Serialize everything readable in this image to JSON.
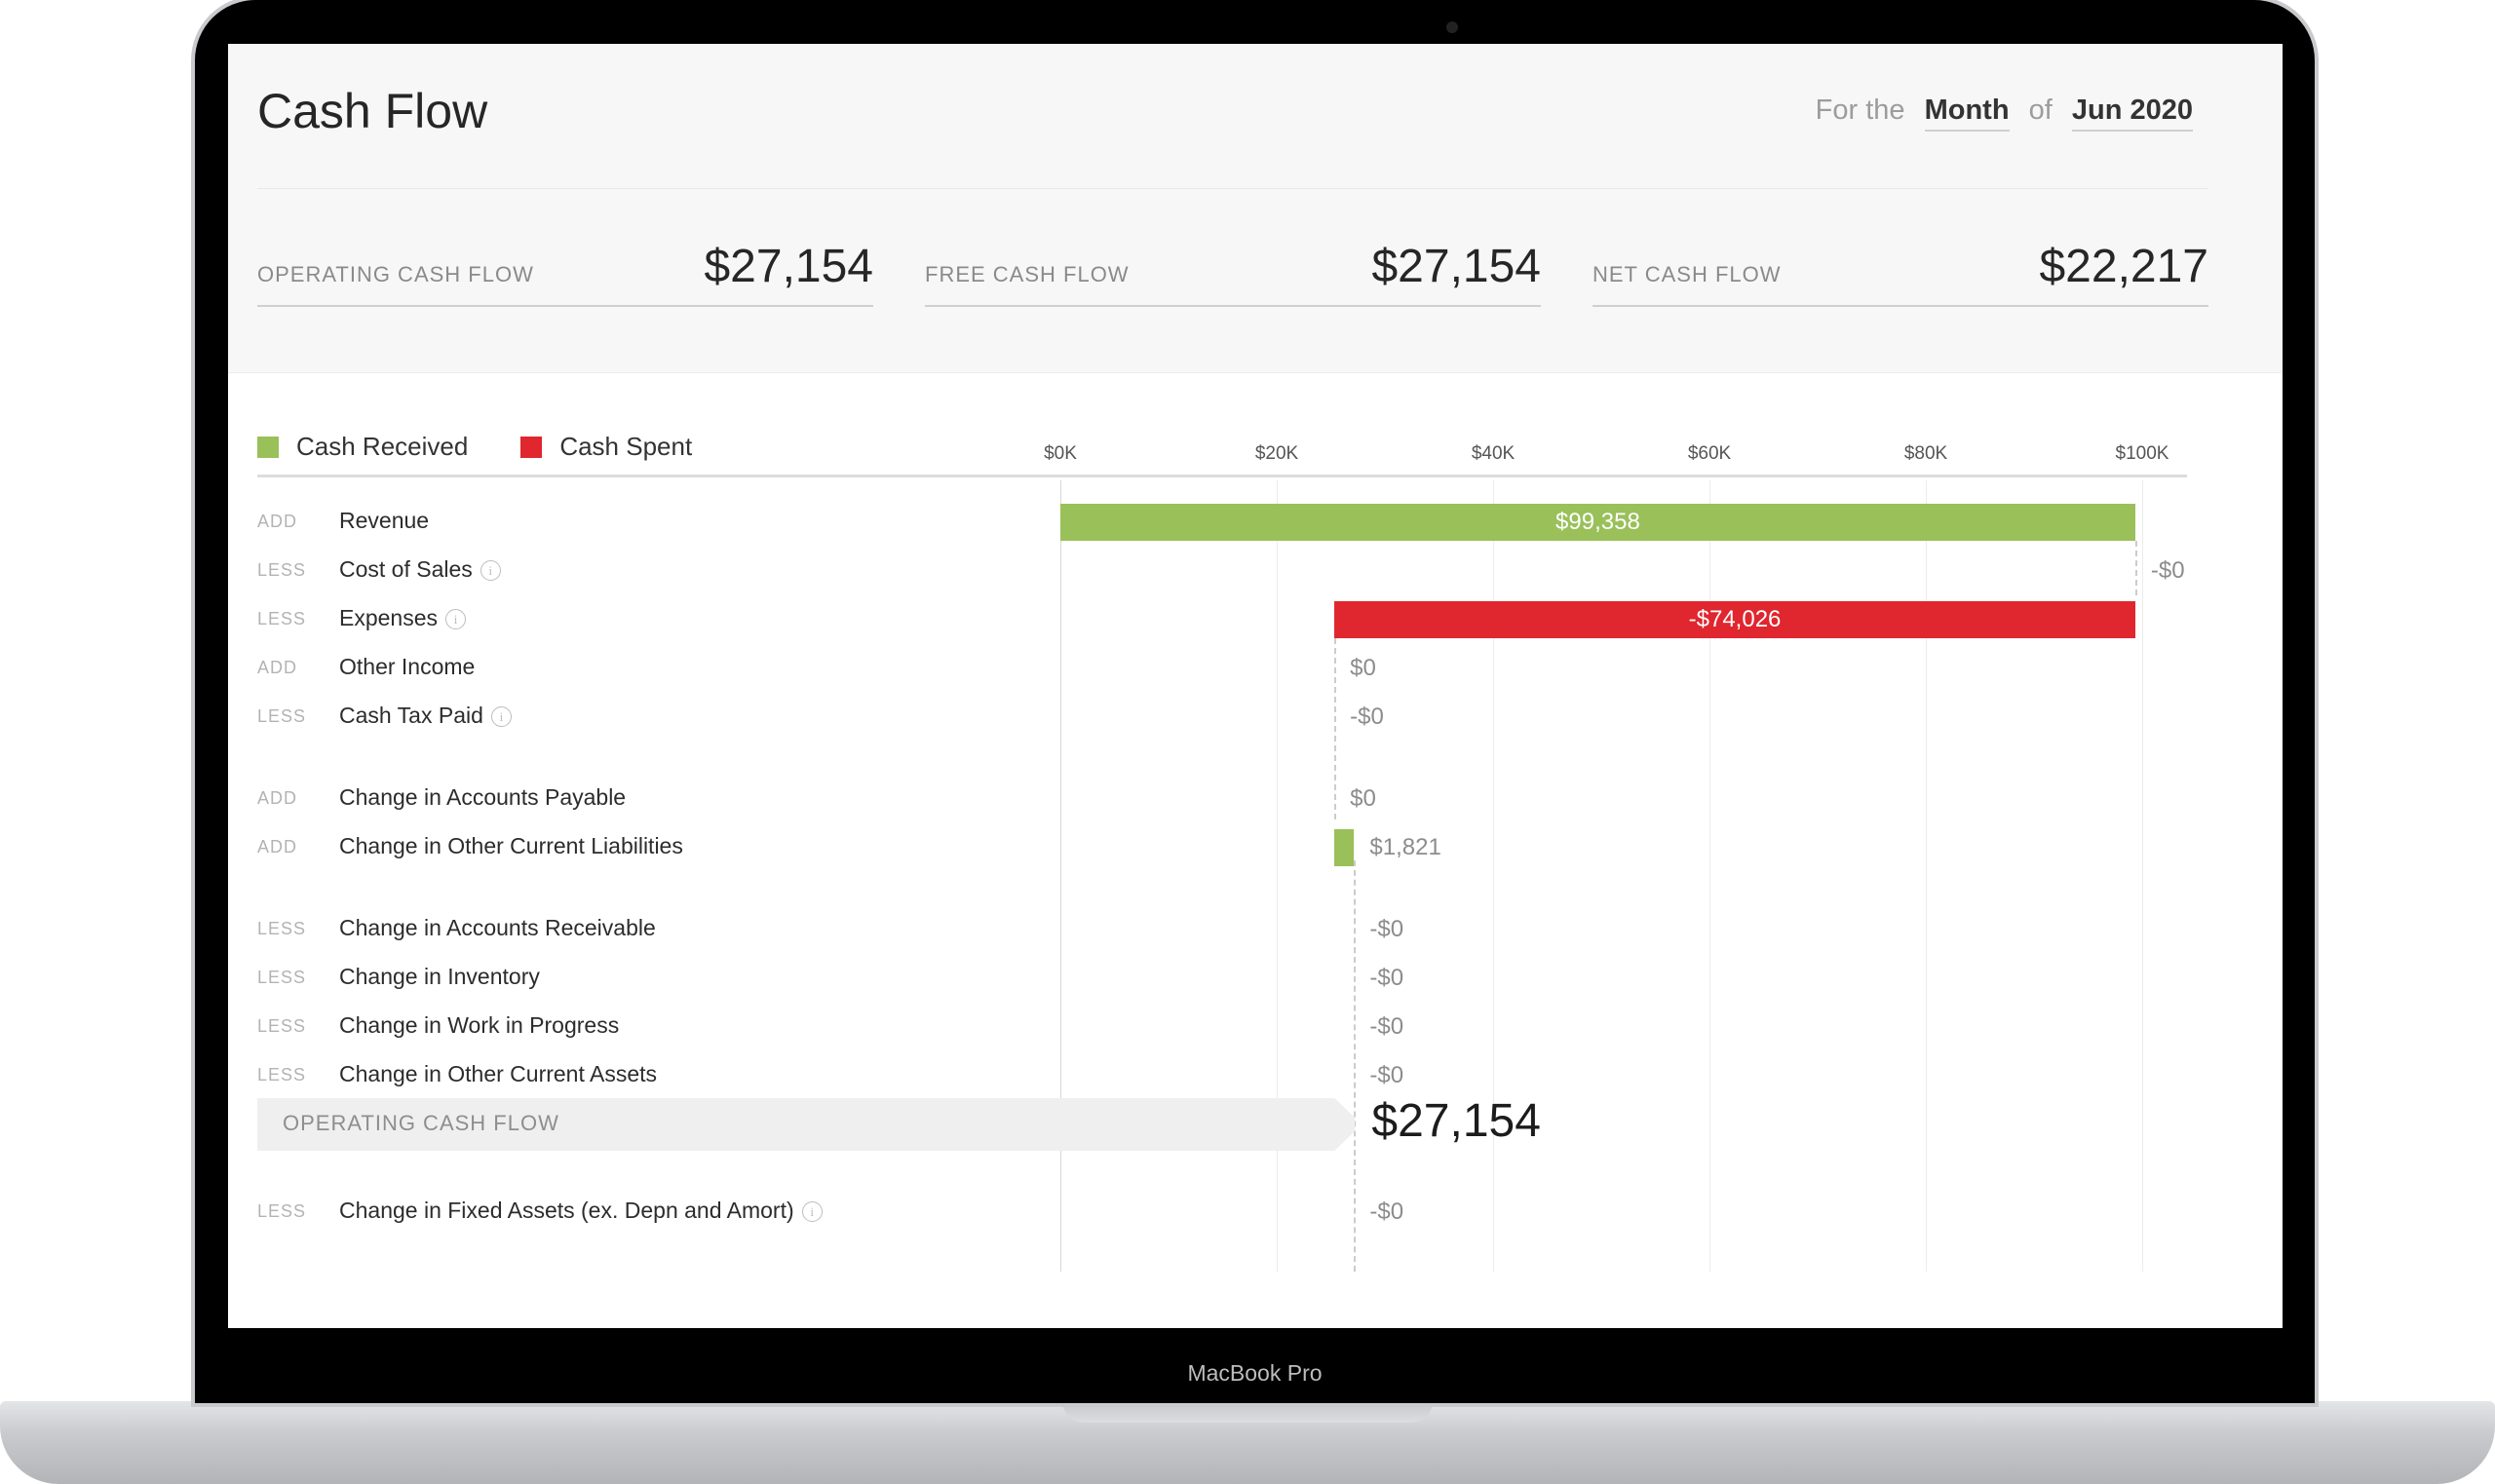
{
  "device": {
    "model_label": "MacBook Pro"
  },
  "header": {
    "title": "Cash Flow",
    "period_prefix": "For the",
    "period_unit": "Month",
    "period_of": "of",
    "period_value": "Jun 2020"
  },
  "kpis": [
    {
      "label": "OPERATING CASH FLOW",
      "value": "$27,154"
    },
    {
      "label": "FREE CASH FLOW",
      "value": "$27,154"
    },
    {
      "label": "NET CASH FLOW",
      "value": "$22,217"
    }
  ],
  "legend": [
    {
      "label": "Cash Received",
      "color": "#9ac05a"
    },
    {
      "label": "Cash Spent",
      "color": "#e0262e"
    }
  ],
  "colors": {
    "received": "#9ac05a",
    "spent": "#e0262e"
  },
  "chart_data": {
    "type": "bar",
    "subtype": "waterfall",
    "x_ticks": [
      "$0K",
      "$20K",
      "$40K",
      "$60K",
      "$80K",
      "$100K"
    ],
    "xlim": [
      0,
      100000
    ],
    "grid": true,
    "legend_position": "top-left",
    "items": [
      {
        "op": "ADD",
        "name": "Revenue",
        "info": false,
        "value": 99358,
        "start": 0,
        "label": "$99,358",
        "kind": "received"
      },
      {
        "op": "LESS",
        "name": "Cost of Sales",
        "info": true,
        "value": 0,
        "start": 99358,
        "label": "-$0",
        "kind": "spent"
      },
      {
        "op": "LESS",
        "name": "Expenses",
        "info": true,
        "value": -74026,
        "start": 99358,
        "label": "-$74,026",
        "kind": "spent"
      },
      {
        "op": "ADD",
        "name": "Other Income",
        "info": false,
        "value": 0,
        "start": 25332,
        "label": "$0",
        "kind": "received"
      },
      {
        "op": "LESS",
        "name": "Cash Tax Paid",
        "info": true,
        "value": 0,
        "start": 25332,
        "label": "-$0",
        "kind": "spent"
      },
      {
        "op": "ADD",
        "name": "Change in Accounts Payable",
        "info": false,
        "value": 0,
        "start": 25332,
        "label": "$0",
        "kind": "received"
      },
      {
        "op": "ADD",
        "name": "Change in Other Current Liabilities",
        "info": false,
        "value": 1821,
        "start": 25332,
        "label": "$1,821",
        "kind": "received"
      },
      {
        "op": "LESS",
        "name": "Change in Accounts Receivable",
        "info": false,
        "value": 0,
        "start": 27154,
        "label": "-$0",
        "kind": "spent"
      },
      {
        "op": "LESS",
        "name": "Change in Inventory",
        "info": false,
        "value": 0,
        "start": 27154,
        "label": "-$0",
        "kind": "spent"
      },
      {
        "op": "LESS",
        "name": "Change in Work in Progress",
        "info": false,
        "value": 0,
        "start": 27154,
        "label": "-$0",
        "kind": "spent"
      },
      {
        "op": "LESS",
        "name": "Change in Other Current Assets",
        "info": false,
        "value": 0,
        "start": 27154,
        "label": "-$0",
        "kind": "spent"
      },
      {
        "op": "LESS",
        "name": "Change in Fixed Assets (ex. Depn and Amort)",
        "info": true,
        "value": 0,
        "start": 27154,
        "label": "-$0",
        "kind": "spent"
      }
    ],
    "subtotal": {
      "label": "OPERATING CASH FLOW",
      "value": 27154,
      "display": "$27,154"
    }
  }
}
